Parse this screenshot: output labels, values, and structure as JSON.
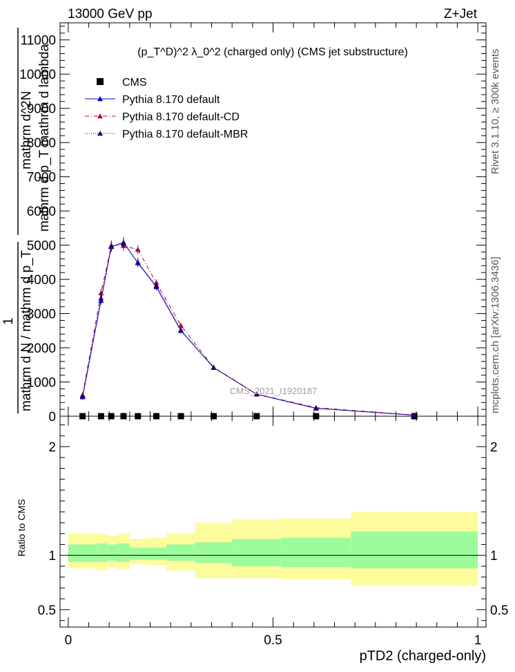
{
  "header": {
    "left": "13000 GeV pp",
    "right": "Z+Jet"
  },
  "plot_title": "(p_T^D)^2 λ_0^2 (charged only) (CMS jet substructure)",
  "right_label_top": "Rivet 3.1.10, ≥ 300k events",
  "right_label_bottom": "mcplots.cern.ch [arXiv:1306.3436]",
  "watermark": "CMS_2021_I1920187",
  "colors": {
    "data": "#000000",
    "default": "#0000cc",
    "cd": "#b0003c",
    "mbr": "#20006e",
    "band_inner": "#9cfc9c",
    "band_outer": "#fcfc9c"
  },
  "chart_data": [
    {
      "type": "line",
      "panel": "main",
      "ylabel_num": "mathrm d^2N",
      "ylabel_den": "mathrm d p_T mathrm d lambda",
      "ylabel_one": "1",
      "ylabel_den2": "mathrm d N / mathrm d p_T",
      "xlim": [
        -0.02,
        1.02
      ],
      "ylim": [
        0,
        11500
      ],
      "yticks": [
        0,
        1000,
        2000,
        3000,
        4000,
        5000,
        6000,
        7000,
        8000,
        9000,
        10000,
        11000
      ],
      "ytick_labels": [
        "0",
        "1000",
        "2000",
        "3000",
        "4000",
        "5000",
        "6000",
        "7000",
        "8000",
        "9000",
        "10000",
        "11000"
      ],
      "legend_position": "top-left",
      "series": [
        {
          "name": "CMS",
          "marker": "square",
          "x": [
            0.035,
            0.08,
            0.105,
            0.135,
            0.17,
            0.215,
            0.275,
            0.355,
            0.46,
            0.605,
            0.845
          ],
          "values": [
            0,
            0,
            0,
            0,
            0,
            0,
            0,
            0,
            0,
            0,
            0
          ]
        },
        {
          "name": "Pythia 8.170 default",
          "marker": "triangle",
          "line": "solid",
          "x": [
            0.035,
            0.08,
            0.105,
            0.135,
            0.17,
            0.215,
            0.275,
            0.355,
            0.46,
            0.605,
            0.845
          ],
          "values": [
            560,
            3380,
            4950,
            5080,
            4480,
            3780,
            2500,
            1420,
            640,
            230,
            30
          ],
          "errors": [
            60,
            120,
            150,
            150,
            120,
            100,
            80,
            50,
            30,
            20,
            10
          ]
        },
        {
          "name": "Pythia 8.170 default-CD",
          "marker": "triangle",
          "line": "dashdot",
          "x": [
            0.035,
            0.08,
            0.105,
            0.135,
            0.17,
            0.215,
            0.275,
            0.355,
            0.46,
            0.605,
            0.845
          ],
          "values": [
            620,
            3600,
            4990,
            4980,
            4870,
            3900,
            2650,
            1430,
            650,
            250,
            35
          ],
          "errors": [
            60,
            120,
            150,
            150,
            130,
            100,
            80,
            50,
            30,
            20,
            10
          ]
        },
        {
          "name": "Pythia 8.170 default-MBR",
          "marker": "triangle",
          "line": "dotted",
          "x": [
            0.035,
            0.08,
            0.105,
            0.135,
            0.17,
            0.215,
            0.275,
            0.355,
            0.46,
            0.605,
            0.845
          ],
          "values": [
            590,
            3450,
            4960,
            5050,
            4500,
            3820,
            2520,
            1420,
            640,
            235,
            32
          ],
          "errors": [
            60,
            120,
            150,
            150,
            120,
            100,
            80,
            50,
            30,
            20,
            10
          ]
        }
      ]
    },
    {
      "type": "area",
      "panel": "ratio",
      "xlabel": "pTD2 (charged-only)",
      "ylabel": "Ratio to CMS",
      "xlim": [
        -0.02,
        1.02
      ],
      "ylim": [
        0.34,
        2.28
      ],
      "yticks": [
        0.5,
        1,
        2
      ],
      "ytick_labels": [
        "0.5",
        "1",
        "2"
      ],
      "xticks": [
        0,
        0.5,
        1
      ],
      "xtick_labels": [
        "0",
        "0.5",
        "1"
      ],
      "bins": [
        0,
        0.07,
        0.095,
        0.12,
        0.15,
        0.19,
        0.24,
        0.31,
        0.4,
        0.52,
        0.69,
        1.0
      ],
      "band_inner_up": [
        1.1,
        1.11,
        1.1,
        1.11,
        1.07,
        1.07,
        1.1,
        1.12,
        1.15,
        1.16,
        1.22
      ],
      "band_inner_down": [
        0.94,
        0.94,
        0.95,
        0.94,
        0.96,
        0.96,
        0.95,
        0.93,
        0.9,
        0.89,
        0.88
      ],
      "band_outer_up": [
        1.2,
        1.2,
        1.18,
        1.2,
        1.15,
        1.16,
        1.2,
        1.3,
        1.33,
        1.34,
        1.4
      ],
      "band_outer_down": [
        0.88,
        0.86,
        0.89,
        0.87,
        0.92,
        0.91,
        0.86,
        0.79,
        0.79,
        0.78,
        0.72
      ]
    }
  ]
}
